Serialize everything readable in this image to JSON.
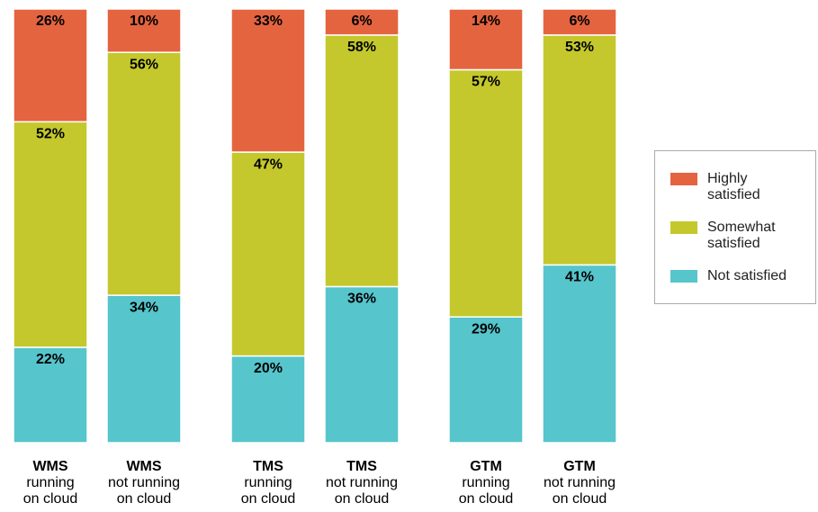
{
  "chart_data": {
    "type": "stacked_bar",
    "categories": [
      [
        "WMS",
        "running",
        "on cloud"
      ],
      [
        "WMS",
        "not running",
        "on cloud"
      ],
      [
        "TMS",
        "running",
        "on cloud"
      ],
      [
        "TMS",
        "not running",
        "on cloud"
      ],
      [
        "GTM",
        "running",
        "on cloud"
      ],
      [
        "GTM",
        "not running",
        "on cloud"
      ]
    ],
    "series": [
      {
        "name": "Not satisfied",
        "color": "#56c5cc",
        "values": [
          22,
          34,
          20,
          36,
          29,
          41
        ],
        "value_labels": [
          "22%",
          "34%",
          "20%",
          "36%",
          "29%",
          "41%"
        ]
      },
      {
        "name": "Somewhat satisfied",
        "color": "#c4c82c",
        "values": [
          52,
          56,
          47,
          58,
          57,
          53
        ],
        "value_labels": [
          "52%",
          "56%",
          "47%",
          "58%",
          "57%",
          "53%"
        ]
      },
      {
        "name": "Highly satisfied",
        "color": "#e4643f",
        "values": [
          26,
          10,
          33,
          6,
          14,
          6
        ],
        "value_labels": [
          "26%",
          "10%",
          "33%",
          "6%",
          "14%",
          "6%"
        ]
      }
    ]
  }
}
